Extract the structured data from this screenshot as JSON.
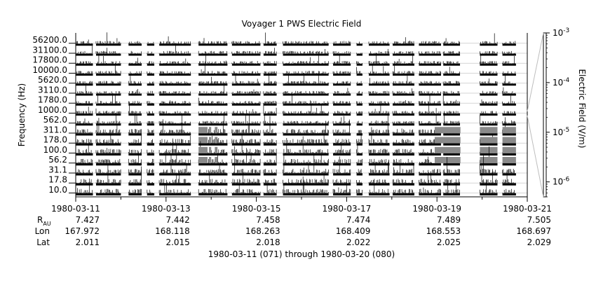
{
  "chart_data": {
    "type": "heatmap",
    "title": "Voyager 1 PWS Electric Field",
    "ylabel": "Frequency (Hz)",
    "colorbar_label": "Electric Field (V/m)",
    "colorbar_scale": "log",
    "colorbar_range": [
      5e-07,
      0.001
    ],
    "colorbar_ticks": [
      "10^-3",
      "10^-4",
      "10^-5",
      "10^-6"
    ],
    "colorbar_tick_values": [
      -3,
      -4,
      -5,
      -6
    ],
    "frequency_channels": [
      "56200.0",
      "31100.0",
      "17800.0",
      "10000.0",
      "5620.0",
      "3110.0",
      "1780.0",
      "1000.0",
      "562.0",
      "311.0",
      "178.0",
      "100.0",
      "56.2",
      "31.1",
      "17.8",
      "10.0"
    ],
    "channel_label_hz": [
      56200,
      31100,
      17800,
      10000,
      5620,
      3110,
      1780,
      1000,
      562,
      311,
      178,
      100,
      56.2,
      31.1,
      17.8,
      10.0
    ],
    "channel_count": 16,
    "x_range": [
      "1980-03-11",
      "1980-03-21"
    ],
    "x_range_days": [
      0,
      10
    ],
    "x_ticks": [
      "1980-03-11",
      "1980-03-13",
      "1980-03-15",
      "1980-03-17",
      "1980-03-19",
      "1980-03-21"
    ],
    "x_tick_days": [
      0,
      2,
      4,
      6,
      8,
      10
    ],
    "x_minor_tick_days": [
      1,
      3,
      5,
      7,
      9
    ],
    "ephemeris_labels": {
      "r_main": "R",
      "r_sub": "AU",
      "lon": "Lon",
      "lat": "Lat"
    },
    "ephemeris": [
      {
        "date": "1980-03-11",
        "r_au": "7.427",
        "lon": "167.972",
        "lat": "2.011"
      },
      {
        "date": "1980-03-13",
        "r_au": "7.442",
        "lon": "168.118",
        "lat": "2.015"
      },
      {
        "date": "1980-03-15",
        "r_au": "7.458",
        "lon": "168.263",
        "lat": "2.018"
      },
      {
        "date": "1980-03-17",
        "r_au": "7.474",
        "lon": "168.409",
        "lat": "2.022"
      },
      {
        "date": "1980-03-19",
        "r_au": "7.489",
        "lon": "168.553",
        "lat": "2.025"
      },
      {
        "date": "1980-03-21",
        "r_au": "7.505",
        "lon": "168.697",
        "lat": "2.029"
      }
    ],
    "xlabel": "1980-03-11 (071) through 1980-03-20 (080)",
    "data_segments_days": [
      [
        0.0,
        0.38
      ],
      [
        0.45,
        1.0
      ],
      [
        1.17,
        1.46
      ],
      [
        1.58,
        1.74
      ],
      [
        1.85,
        2.55
      ],
      [
        2.72,
        3.36
      ],
      [
        3.46,
        4.09
      ],
      [
        4.16,
        4.45
      ],
      [
        4.59,
        5.6
      ],
      [
        5.7,
        6.09
      ],
      [
        6.22,
        6.35
      ],
      [
        6.49,
        6.95
      ],
      [
        7.02,
        7.5
      ],
      [
        7.6,
        8.09
      ],
      [
        8.14,
        8.51
      ],
      [
        8.95,
        9.34
      ],
      [
        9.45,
        9.75
      ]
    ],
    "active_low_freq_days": [
      [
        2.72,
        2.92
      ],
      [
        2.95,
        3.0
      ],
      [
        3.08,
        3.14
      ],
      [
        7.95,
        8.52
      ],
      [
        8.95,
        9.34
      ],
      [
        9.45,
        9.75
      ]
    ]
  }
}
